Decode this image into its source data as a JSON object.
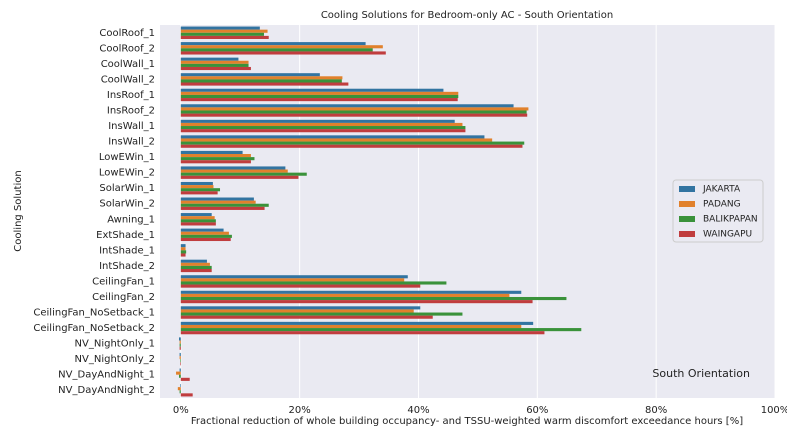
{
  "chart_data": {
    "type": "hbar",
    "title": "Cooling Solutions for Bedroom-only AC - South Orientation",
    "x_label": "Fractional reduction of whole building occupancy- and TSSU-weighted warm discomfort exceedance hours [%]",
    "y_label": "Cooling Solution",
    "annotation": "South Orientation",
    "legend_position": "right",
    "grid": true,
    "categories": [
      "CoolRoof_1",
      "CoolRoof_2",
      "CoolWall_1",
      "CoolWall_2",
      "InsRoof_1",
      "InsRoof_2",
      "InsWall_1",
      "InsWall_2",
      "LowEWin_1",
      "LowEWin_2",
      "SolarWin_1",
      "SolarWin_2",
      "Awning_1",
      "ExtShade_1",
      "IntShade_1",
      "IntShade_2",
      "CeilingFan_1",
      "CeilingFan_2",
      "CeilingFan_NoSetback_1",
      "CeilingFan_NoSetback_2",
      "NV_NightOnly_1",
      "NV_NightOnly_2",
      "NV_DayAndNight_1",
      "NV_DayAndNight_2"
    ],
    "series": [
      {
        "name": "JAKARTA",
        "color": "#3274a1",
        "values": [
          13.3,
          31.1,
          9.7,
          23.4,
          44.2,
          56.0,
          46.1,
          51.1,
          10.4,
          17.6,
          5.4,
          12.3,
          5.2,
          7.2,
          0.8,
          4.4,
          38.2,
          57.3,
          40.3,
          59.3,
          -0.3,
          -0.2,
          -0.2,
          -0.1
        ]
      },
      {
        "name": "PADANG",
        "color": "#e1812c",
        "values": [
          14.6,
          34.0,
          11.4,
          27.2,
          46.7,
          58.5,
          47.4,
          52.4,
          11.8,
          18.0,
          5.5,
          12.6,
          5.7,
          8.1,
          0.8,
          4.9,
          37.6,
          55.3,
          39.2,
          57.3,
          -0.2,
          -0.2,
          -0.8,
          -0.5
        ]
      },
      {
        "name": "BALIKPAPAN",
        "color": "#3a923a",
        "values": [
          14.0,
          32.3,
          11.4,
          27.1,
          46.7,
          58.2,
          47.9,
          57.8,
          12.4,
          21.2,
          6.6,
          14.8,
          5.9,
          8.6,
          0.9,
          5.2,
          44.7,
          64.9,
          47.4,
          67.4,
          -0.2,
          -0.1,
          -0.3,
          -0.2
        ]
      },
      {
        "name": "WAINGAPU",
        "color": "#c03d3e",
        "values": [
          14.8,
          34.5,
          11.8,
          28.2,
          46.6,
          58.3,
          47.9,
          57.5,
          11.8,
          19.8,
          6.2,
          14.1,
          5.9,
          8.4,
          0.8,
          5.2,
          40.3,
          59.2,
          42.4,
          61.2,
          -0.2,
          -0.1,
          1.5,
          2.0
        ]
      }
    ],
    "xlim": [
      -3.5,
      100
    ],
    "xticks": [
      {
        "value": 0,
        "label": "0%"
      },
      {
        "value": 20,
        "label": "20%"
      },
      {
        "value": 40,
        "label": "40%"
      },
      {
        "value": 60,
        "label": "60%"
      },
      {
        "value": 80,
        "label": "80%"
      },
      {
        "value": 100,
        "label": "100%"
      }
    ]
  }
}
